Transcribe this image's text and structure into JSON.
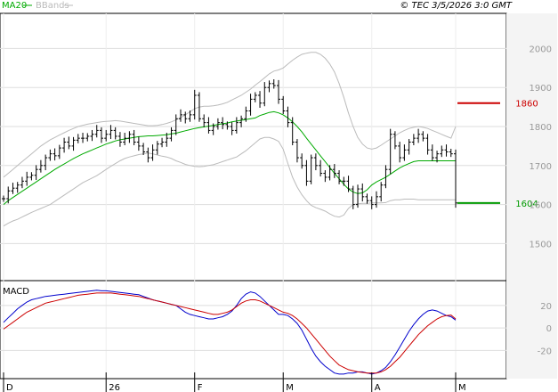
{
  "header": {
    "legend": [
      {
        "label": "MA20",
        "color": "#00aa00"
      },
      {
        "label": "BBands",
        "color": "#bbbbbb"
      }
    ],
    "copyright": "© TEC 3/5/2026 3:0 GMT"
  },
  "chart_data": [
    {
      "type": "line",
      "panel": "price",
      "subtype": "ohlc-bars",
      "y_ticks": [
        "2000",
        "1900",
        "1800",
        "1700",
        "1600",
        "1500"
      ],
      "ylim": [
        1405,
        2090
      ],
      "x_ticks": [
        "D",
        "26",
        "F",
        "M",
        "A",
        "M"
      ],
      "x_tick_index": [
        0,
        22,
        41,
        60,
        79,
        97
      ],
      "n_bars": 98,
      "close": [
        1615,
        1635,
        1642,
        1650,
        1660,
        1670,
        1675,
        1690,
        1700,
        1720,
        1730,
        1725,
        1745,
        1760,
        1750,
        1765,
        1770,
        1770,
        1775,
        1780,
        1790,
        1770,
        1780,
        1790,
        1775,
        1760,
        1770,
        1780,
        1760,
        1750,
        1735,
        1720,
        1740,
        1755,
        1760,
        1770,
        1790,
        1820,
        1830,
        1820,
        1830,
        1880,
        1820,
        1810,
        1790,
        1800,
        1810,
        1805,
        1800,
        1790,
        1810,
        1820,
        1840,
        1870,
        1880,
        1860,
        1900,
        1910,
        1905,
        1870,
        1840,
        1810,
        1760,
        1720,
        1700,
        1660,
        1720,
        1700,
        1680,
        1670,
        1690,
        1680,
        1660,
        1660,
        1640,
        1600,
        1640,
        1620,
        1610,
        1600,
        1620,
        1650,
        1690,
        1780,
        1750,
        1720,
        1740,
        1760,
        1770,
        1780,
        1770,
        1740,
        1720,
        1730,
        1740,
        1735,
        1730,
        1604
      ],
      "ma20": [
        1600,
        1610,
        1618,
        1626,
        1634,
        1642,
        1650,
        1658,
        1666,
        1674,
        1682,
        1690,
        1697,
        1704,
        1711,
        1718,
        1724,
        1730,
        1735,
        1740,
        1745,
        1750,
        1755,
        1759,
        1763,
        1766,
        1768,
        1770,
        1772,
        1774,
        1775,
        1776,
        1776,
        1777,
        1778,
        1779,
        1781,
        1783,
        1786,
        1789,
        1792,
        1795,
        1797,
        1799,
        1801,
        1803,
        1805,
        1807,
        1809,
        1812,
        1814,
        1816,
        1818,
        1820,
        1822,
        1828,
        1832,
        1836,
        1838,
        1835,
        1830,
        1822,
        1812,
        1800,
        1786,
        1770,
        1755,
        1740,
        1725,
        1710,
        1695,
        1680,
        1666,
        1652,
        1640,
        1632,
        1628,
        1630,
        1638,
        1650,
        1658,
        1664,
        1670,
        1678,
        1686,
        1694,
        1700,
        1705,
        1710,
        1712,
        1712,
        1712,
        1712,
        1712,
        1712,
        1712,
        1712,
        1712
      ],
      "bb_upper": [
        1670,
        1680,
        1690,
        1700,
        1710,
        1720,
        1730,
        1740,
        1750,
        1758,
        1766,
        1772,
        1778,
        1784,
        1790,
        1795,
        1800,
        1803,
        1806,
        1808,
        1810,
        1812,
        1813,
        1814,
        1815,
        1814,
        1812,
        1810,
        1808,
        1806,
        1804,
        1802,
        1802,
        1803,
        1805,
        1808,
        1812,
        1817,
        1823,
        1830,
        1838,
        1846,
        1850,
        1852,
        1852,
        1853,
        1855,
        1858,
        1862,
        1868,
        1874,
        1880,
        1888,
        1896,
        1906,
        1915,
        1925,
        1935,
        1942,
        1945,
        1950,
        1960,
        1970,
        1978,
        1985,
        1988,
        1990,
        1990,
        1985,
        1975,
        1960,
        1940,
        1910,
        1875,
        1835,
        1800,
        1772,
        1755,
        1745,
        1742,
        1745,
        1752,
        1760,
        1768,
        1776,
        1784,
        1790,
        1795,
        1798,
        1800,
        1798,
        1795,
        1790,
        1785,
        1780,
        1775,
        1770,
        1800
      ],
      "bb_lower": [
        1545,
        1552,
        1558,
        1562,
        1568,
        1574,
        1580,
        1585,
        1590,
        1595,
        1600,
        1608,
        1616,
        1624,
        1632,
        1640,
        1648,
        1656,
        1662,
        1668,
        1674,
        1682,
        1690,
        1698,
        1705,
        1712,
        1718,
        1722,
        1725,
        1728,
        1730,
        1732,
        1730,
        1727,
        1724,
        1722,
        1718,
        1712,
        1708,
        1703,
        1700,
        1698,
        1697,
        1698,
        1700,
        1702,
        1706,
        1710,
        1714,
        1718,
        1722,
        1730,
        1738,
        1748,
        1758,
        1768,
        1772,
        1772,
        1768,
        1762,
        1742,
        1705,
        1670,
        1645,
        1625,
        1610,
        1598,
        1592,
        1588,
        1583,
        1576,
        1570,
        1568,
        1573,
        1590,
        1600,
        1602,
        1603,
        1603,
        1604,
        1604,
        1604,
        1605,
        1610,
        1612,
        1612,
        1614,
        1614,
        1614,
        1612,
        1612,
        1612,
        1612,
        1612,
        1612,
        1612,
        1612,
        1612
      ],
      "levels": [
        {
          "label": "1860",
          "value": 1860,
          "color": "#cc0000"
        },
        {
          "label": "1604",
          "value": 1604,
          "color": "#009900"
        }
      ]
    },
    {
      "type": "line",
      "panel": "indicator",
      "title": "MACD",
      "y_ticks": [
        "20",
        "0",
        "-20"
      ],
      "ylim": [
        -45,
        42
      ],
      "series": [
        {
          "color": "#0000cc",
          "values": [
            5,
            9,
            13,
            17,
            20,
            23,
            25,
            26,
            27,
            28,
            28.5,
            29,
            29.5,
            30,
            30.5,
            31,
            31.5,
            32,
            32.5,
            33,
            33.5,
            33,
            33,
            32.5,
            32,
            31.5,
            31,
            30.5,
            30,
            29.5,
            28,
            26.5,
            25,
            24,
            23,
            22,
            21,
            20,
            17,
            14,
            12,
            11,
            10,
            9,
            8,
            8,
            9,
            10,
            12,
            15,
            20,
            26,
            30,
            32,
            31,
            28,
            24,
            20,
            16,
            12,
            12,
            11,
            8,
            4,
            -2,
            -10,
            -18,
            -25,
            -30,
            -34,
            -37,
            -40,
            -41,
            -41,
            -40,
            -40,
            -39,
            -39,
            -40,
            -41,
            -40,
            -38,
            -35,
            -30,
            -24,
            -17,
            -10,
            -3,
            3,
            8,
            12,
            15,
            16,
            15,
            13,
            11,
            10,
            7
          ]
        },
        {
          "color": "#cc0000",
          "values": [
            -1,
            2,
            5,
            8,
            11,
            14,
            16,
            18,
            20,
            22,
            23,
            24,
            25,
            26,
            27,
            28,
            29,
            29.5,
            30,
            30.5,
            31,
            31,
            31,
            31,
            30.5,
            30,
            29.5,
            29,
            28.5,
            28,
            27,
            26,
            25,
            24,
            23,
            22,
            21,
            20,
            19,
            18,
            17,
            16,
            15,
            14,
            13,
            12,
            12,
            13,
            14,
            16,
            19,
            22,
            24,
            25,
            25,
            24,
            22,
            20,
            18,
            16,
            14,
            13,
            11,
            8,
            4,
            0,
            -5,
            -10,
            -15,
            -20,
            -25,
            -29,
            -33,
            -35,
            -37,
            -38,
            -39,
            -39.5,
            -40,
            -40,
            -40,
            -39,
            -37,
            -34,
            -30,
            -26,
            -21,
            -16,
            -11,
            -6,
            -2,
            2,
            5,
            8,
            10,
            11,
            11.5,
            8
          ]
        }
      ]
    }
  ]
}
